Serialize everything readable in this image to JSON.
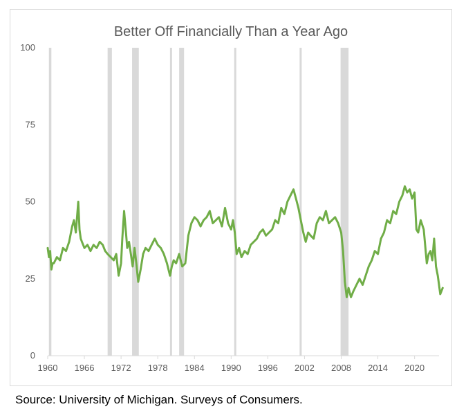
{
  "chart_data": {
    "type": "line",
    "title": "Better Off Financially Than a Year Ago",
    "xlabel": "",
    "ylabel": "",
    "xlim": [
      1960,
      2024
    ],
    "ylim": [
      0,
      100
    ],
    "yticks": [
      0,
      25,
      50,
      75,
      100
    ],
    "xticks": [
      1960,
      1966,
      1972,
      1978,
      1984,
      1990,
      1996,
      2002,
      2008,
      2014,
      2020
    ],
    "xtick_labels": [
      "1960",
      "1966",
      "1972",
      "1978",
      "1984",
      "1990",
      "1996",
      "2002",
      "2008",
      "2014",
      "2020"
    ],
    "ytick_labels": [
      "0",
      "25",
      "50",
      "75",
      "100"
    ],
    "grid": false,
    "line_color": "#70ad47",
    "band_color": "#d9d9d9",
    "recessions": [
      [
        1960.2,
        1960.6
      ],
      [
        1969.8,
        1970.5
      ],
      [
        1973.8,
        1974.9
      ],
      [
        1980.0,
        1980.3
      ],
      [
        1981.5,
        1982.3
      ],
      [
        1990.5,
        1990.8
      ],
      [
        2001.2,
        2001.5
      ],
      [
        2007.9,
        2009.2
      ]
    ],
    "series": [
      {
        "name": "Better Off Financially Than a Year Ago",
        "x": [
          1960,
          1960.2,
          1960.4,
          1960.6,
          1960.8,
          1961,
          1961.5,
          1962,
          1962.5,
          1963,
          1963.5,
          1964,
          1964.3,
          1964.6,
          1965,
          1965.2,
          1965.4,
          1965.6,
          1966,
          1966.5,
          1967,
          1967.5,
          1968,
          1968.5,
          1969,
          1969.4,
          1969.8,
          1970.3,
          1970.8,
          1971.2,
          1971.6,
          1972,
          1972.2,
          1972.5,
          1972.8,
          1973,
          1973.3,
          1973.6,
          1973.9,
          1974.2,
          1974.5,
          1974.8,
          1975.2,
          1975.6,
          1976,
          1976.5,
          1977,
          1977.5,
          1978,
          1978.5,
          1979,
          1979.5,
          1980,
          1980.3,
          1980.6,
          1981,
          1981.5,
          1982,
          1982.5,
          1983,
          1983.5,
          1984,
          1984.5,
          1985,
          1985.5,
          1986,
          1986.5,
          1987,
          1987.5,
          1988,
          1988.5,
          1989,
          1989.5,
          1990,
          1990.3,
          1990.6,
          1990.9,
          1991.3,
          1991.7,
          1992.2,
          1992.7,
          1993.2,
          1993.7,
          1994.2,
          1994.7,
          1995.2,
          1995.7,
          1996.2,
          1996.7,
          1997.2,
          1997.7,
          1998.2,
          1998.7,
          1999.2,
          1999.7,
          2000.2,
          2000.6,
          2001,
          2001.4,
          2001.8,
          2002.2,
          2002.6,
          2003,
          2003.5,
          2004,
          2004.5,
          2005,
          2005.5,
          2006,
          2006.5,
          2007,
          2007.5,
          2008,
          2008.3,
          2008.6,
          2008.9,
          2009.2,
          2009.6,
          2010,
          2010.5,
          2011,
          2011.5,
          2012,
          2012.5,
          2013,
          2013.5,
          2014,
          2014.5,
          2015,
          2015.5,
          2016,
          2016.5,
          2017,
          2017.5,
          2018,
          2018.4,
          2018.8,
          2019.2,
          2019.6,
          2020,
          2020.3,
          2020.6,
          2021,
          2021.5,
          2022,
          2022.3,
          2022.6,
          2022.9,
          2023.2,
          2023.5,
          2023.8,
          2024.2,
          2024.6
        ],
        "values": [
          35,
          32,
          34,
          28,
          30,
          30,
          32,
          31,
          35,
          34,
          37,
          42,
          44,
          40,
          50,
          41,
          38,
          37,
          35,
          36,
          34,
          36,
          35,
          37,
          36,
          34,
          33,
          32,
          31,
          33,
          26,
          30,
          38,
          47,
          40,
          35,
          37,
          33,
          29,
          35,
          30,
          24,
          28,
          33,
          35,
          34,
          36,
          38,
          36,
          35,
          33,
          30,
          26,
          29,
          31,
          30,
          33,
          29,
          30,
          39,
          43,
          45,
          44,
          42,
          44,
          45,
          47,
          43,
          44,
          45,
          42,
          48,
          43,
          41,
          44,
          40,
          33,
          35,
          32,
          34,
          33,
          36,
          37,
          38,
          40,
          41,
          39,
          40,
          41,
          44,
          43,
          48,
          46,
          50,
          52,
          54,
          51,
          48,
          44,
          40,
          37,
          40,
          39,
          38,
          43,
          45,
          44,
          47,
          43,
          44,
          45,
          43,
          40,
          34,
          24,
          19,
          22,
          19,
          21,
          23,
          25,
          23,
          26,
          29,
          31,
          34,
          33,
          38,
          40,
          44,
          43,
          47,
          46,
          50,
          52,
          55,
          53,
          54,
          51,
          53,
          41,
          40,
          44,
          41,
          30,
          33,
          34,
          31,
          38,
          29,
          26,
          20,
          22
        ]
      }
    ]
  },
  "footer": {
    "source": "Source: University of Michigan. Surveys of Consumers."
  }
}
